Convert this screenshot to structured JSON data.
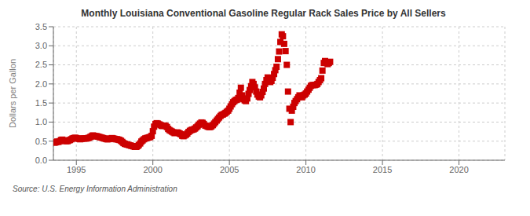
{
  "chart_data": {
    "type": "scatter",
    "title": "Monthly Louisiana Conventional Gasoline Regular Rack Sales Price by All Sellers",
    "ylabel": "Dollars per Gallon",
    "annotations": [
      "Source: U.S. Energy Information Administration"
    ],
    "color": "#cc0000",
    "marker": "square",
    "grid": true,
    "xlim": [
      1993.5,
      2023.0
    ],
    "ylim": [
      0.0,
      3.5
    ],
    "xticks": [
      1995,
      2000,
      2005,
      2010,
      2015,
      2020
    ],
    "yticks": [
      {
        "value": 0.0,
        "label": "0.0"
      },
      0.5,
      {
        "value": 1.0,
        "label": "1.0"
      },
      1.5,
      {
        "value": 2.0,
        "label": "2.0"
      },
      2.5,
      {
        "value": 3.0,
        "label": "3.0"
      },
      3.5
    ],
    "x": [
      1993.58,
      1993.67,
      1993.75,
      1993.83,
      1993.92,
      1994.0,
      1994.08,
      1994.17,
      1994.25,
      1994.33,
      1994.42,
      1994.5,
      1994.58,
      1994.67,
      1994.75,
      1994.83,
      1994.92,
      1995.0,
      1995.08,
      1995.17,
      1995.25,
      1995.33,
      1995.42,
      1995.5,
      1995.58,
      1995.67,
      1995.75,
      1995.83,
      1995.92,
      1996.0,
      1996.08,
      1996.17,
      1996.25,
      1996.33,
      1996.42,
      1996.5,
      1996.58,
      1996.67,
      1996.75,
      1996.83,
      1996.92,
      1997.0,
      1997.08,
      1997.17,
      1997.25,
      1997.33,
      1997.42,
      1997.5,
      1997.58,
      1997.67,
      1997.75,
      1997.83,
      1997.92,
      1998.0,
      1998.08,
      1998.17,
      1998.25,
      1998.33,
      1998.42,
      1998.5,
      1998.58,
      1998.67,
      1998.75,
      1998.83,
      1998.92,
      1999.0,
      1999.08,
      1999.17,
      1999.25,
      1999.33,
      1999.42,
      1999.5,
      1999.58,
      1999.67,
      1999.75,
      1999.83,
      1999.92,
      2000.0,
      2000.08,
      2000.17,
      2000.25,
      2000.33,
      2000.42,
      2000.5,
      2000.58,
      2000.67,
      2000.75,
      2000.83,
      2000.92,
      2001.0,
      2001.08,
      2001.17,
      2001.25,
      2001.33,
      2001.42,
      2001.5,
      2001.58,
      2001.67,
      2001.75,
      2001.83,
      2001.92,
      2002.0,
      2002.08,
      2002.17,
      2002.25,
      2002.33,
      2002.42,
      2002.5,
      2002.58,
      2002.67,
      2002.75,
      2002.83,
      2002.92,
      2003.0,
      2003.08,
      2003.17,
      2003.25,
      2003.33,
      2003.42,
      2003.5,
      2003.58,
      2003.67,
      2003.75,
      2003.83,
      2003.92,
      2004.0,
      2004.08,
      2004.17,
      2004.25,
      2004.33,
      2004.42,
      2004.5,
      2004.58,
      2004.67,
      2004.75,
      2004.83,
      2004.92,
      2005.0,
      2005.08,
      2005.17,
      2005.25,
      2005.33,
      2005.42,
      2005.5,
      2005.58,
      2005.67,
      2005.75,
      2005.83,
      2005.92,
      2006.0,
      2006.08,
      2006.17,
      2006.25,
      2006.33,
      2006.42,
      2006.5,
      2006.58,
      2006.67,
      2006.75,
      2006.83,
      2006.92,
      2007.0,
      2007.08,
      2007.17,
      2007.25,
      2007.33,
      2007.42,
      2007.5,
      2007.58,
      2007.67,
      2007.75,
      2007.83,
      2007.92,
      2008.0,
      2008.08,
      2008.17,
      2008.25,
      2008.33,
      2008.42,
      2008.5,
      2008.58,
      2008.67,
      2008.75,
      2008.83,
      2008.92,
      2009.0,
      2009.08,
      2009.17,
      2009.25,
      2009.33,
      2009.42,
      2009.5,
      2009.58,
      2009.67,
      2009.75,
      2009.83,
      2009.92,
      2010.0,
      2010.08,
      2010.17,
      2010.25,
      2010.33,
      2010.42,
      2010.5,
      2010.58,
      2010.67,
      2010.75,
      2010.83,
      2010.92,
      2011.0,
      2011.08,
      2011.17,
      2011.25,
      2011.33,
      2011.42,
      2011.5,
      2011.58
    ],
    "values": [
      0.46,
      0.47,
      0.49,
      0.48,
      0.5,
      0.53,
      0.54,
      0.52,
      0.51,
      0.5,
      0.5,
      0.52,
      0.53,
      0.55,
      0.57,
      0.58,
      0.59,
      0.58,
      0.57,
      0.56,
      0.55,
      0.56,
      0.57,
      0.57,
      0.57,
      0.57,
      0.58,
      0.59,
      0.61,
      0.63,
      0.65,
      0.64,
      0.63,
      0.63,
      0.62,
      0.61,
      0.6,
      0.59,
      0.58,
      0.57,
      0.56,
      0.55,
      0.55,
      0.56,
      0.57,
      0.58,
      0.57,
      0.56,
      0.55,
      0.55,
      0.54,
      0.53,
      0.51,
      0.48,
      0.45,
      0.43,
      0.42,
      0.41,
      0.4,
      0.39,
      0.38,
      0.37,
      0.36,
      0.35,
      0.35,
      0.37,
      0.4,
      0.44,
      0.49,
      0.52,
      0.55,
      0.57,
      0.58,
      0.59,
      0.6,
      0.61,
      0.64,
      0.76,
      0.88,
      0.95,
      0.97,
      0.96,
      0.94,
      0.92,
      0.9,
      0.9,
      0.91,
      0.9,
      0.87,
      0.82,
      0.79,
      0.77,
      0.75,
      0.73,
      0.71,
      0.72,
      0.73,
      0.72,
      0.7,
      0.68,
      0.64,
      0.63,
      0.65,
      0.67,
      0.7,
      0.74,
      0.77,
      0.79,
      0.8,
      0.81,
      0.83,
      0.86,
      0.89,
      0.93,
      0.96,
      0.99,
      0.98,
      0.95,
      0.91,
      0.9,
      0.88,
      0.87,
      0.87,
      0.89,
      0.92,
      0.96,
      1.0,
      1.04,
      1.08,
      1.12,
      1.16,
      1.19,
      1.2,
      1.22,
      1.24,
      1.27,
      1.3,
      1.35,
      1.41,
      1.47,
      1.52,
      1.55,
      1.58,
      1.59,
      1.63,
      1.77,
      1.9,
      1.7,
      1.6,
      1.57,
      1.55,
      1.62,
      1.74,
      1.84,
      1.94,
      2.05,
      2.0,
      1.91,
      1.8,
      1.72,
      1.67,
      1.65,
      1.7,
      1.79,
      1.88,
      2.0,
      2.1,
      2.17,
      2.13,
      2.05,
      2.08,
      2.16,
      2.26,
      2.36,
      2.45,
      2.65,
      2.85,
      3.1,
      3.3,
      3.25,
      3.05,
      2.86,
      2.5,
      1.8,
      1.35,
      1.0,
      1.3,
      1.4,
      1.5,
      1.55,
      1.6,
      1.65,
      1.7,
      1.68,
      1.65,
      1.7,
      1.72,
      1.75,
      1.8,
      1.85,
      1.9,
      1.95,
      1.97,
      1.97,
      1.97,
      1.98,
      2.0,
      2.05,
      2.1,
      2.15,
      2.35,
      2.55,
      2.6,
      2.55,
      2.52,
      2.55,
      2.58
    ]
  }
}
